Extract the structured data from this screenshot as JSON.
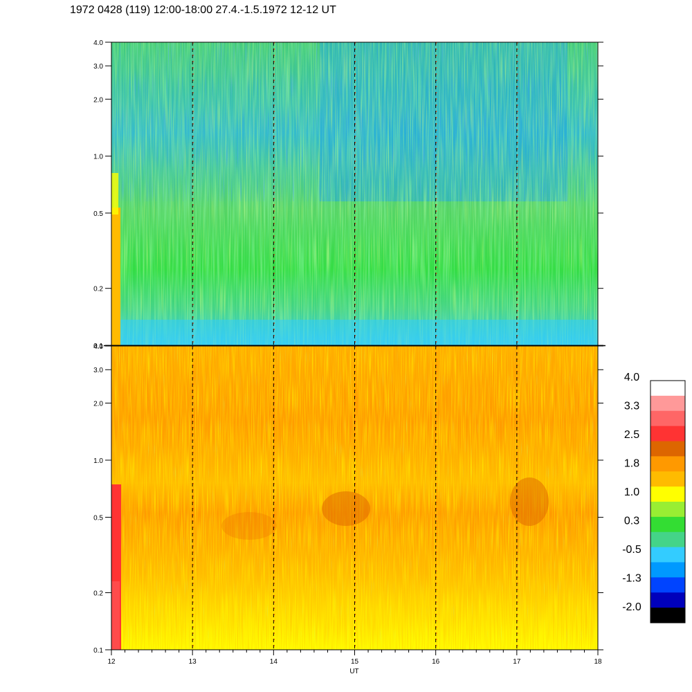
{
  "title": "1972 0428 (119) 12:00-18:00 27.4.-1.5.1972  12-12 UT",
  "chart_data": [
    {
      "type": "heatmap",
      "panel": "top",
      "xlabel": "",
      "ylabel": "",
      "xlim": [
        12,
        18
      ],
      "ylim": [
        0.1,
        4.0
      ],
      "yscale": "log",
      "y_tick_labels": [
        "0.1",
        "0.2",
        "0.5",
        "1.0",
        "2.0",
        "3.0",
        "4.0"
      ],
      "y_tick_values": [
        0.1,
        0.2,
        0.5,
        1.0,
        2.0,
        3.0,
        4.0
      ],
      "hour_markers": [
        13,
        14,
        15,
        16,
        17
      ],
      "dominant_colors": [
        "#33dd33",
        "#44d488",
        "#33ccff",
        "#99ee33",
        "#0088ee"
      ]
    },
    {
      "type": "heatmap",
      "panel": "bottom",
      "xlabel": "UT",
      "ylabel": "",
      "xlim": [
        12,
        18
      ],
      "ylim": [
        0.1,
        4.0
      ],
      "yscale": "log",
      "x_tick_labels": [
        "12",
        "13",
        "14",
        "15",
        "16",
        "17",
        "18"
      ],
      "x_tick_values": [
        12,
        13,
        14,
        15,
        16,
        17,
        18
      ],
      "y_tick_labels": [
        "0.1",
        "0.2",
        "0.5",
        "1.0",
        "2.0",
        "3.0",
        "4.0"
      ],
      "y_tick_values": [
        0.1,
        0.2,
        0.5,
        1.0,
        2.0,
        3.0,
        4.0
      ],
      "hour_markers": [
        13,
        14,
        15,
        16,
        17
      ],
      "dominant_colors": [
        "#ffbb00",
        "#ffff00",
        "#ff9900",
        "#99ee33",
        "#dd6600"
      ]
    }
  ],
  "colorbar": {
    "labels": [
      "4.0",
      "3.3",
      "2.5",
      "1.8",
      "1.0",
      "0.3",
      "-0.5",
      "-1.3",
      "-2.0"
    ],
    "colors": [
      "#ffffff",
      "#ff9999",
      "#ff6666",
      "#ff3333",
      "#dd6600",
      "#ff9900",
      "#ffbb00",
      "#ffff00",
      "#99ee33",
      "#33dd33",
      "#44d488",
      "#33ccff",
      "#0099ff",
      "#0044ff",
      "#0000bb",
      "#000000"
    ]
  }
}
